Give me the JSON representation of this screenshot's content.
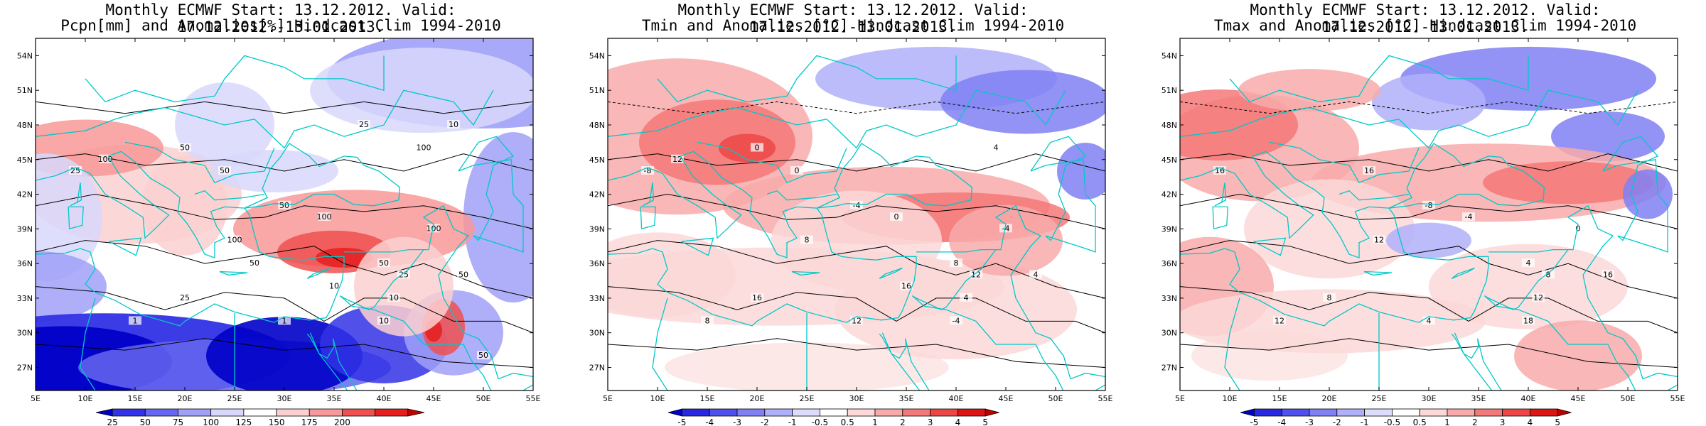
{
  "panels": [
    {
      "title_line1": "Monthly ECMWF Start: 13.12.2012. Valid: 17.12.2012.-13.01.2013.",
      "title_line2": "Pcpn[mm] and Anomalies[%] Hindcast Clim 1994-2010",
      "variable": "precipitation",
      "colorbar": {
        "labels": [
          "25",
          "50",
          "75",
          "100",
          "125",
          "150",
          "175",
          "200"
        ],
        "colors": [
          "#0000c8",
          "#3232e6",
          "#6666f0",
          "#a0a0f8",
          "#d8d8fc",
          "#ffffff",
          "#fcd0d0",
          "#f89898",
          "#f05050",
          "#e61e1e",
          "#c80000"
        ]
      },
      "contour_labels": [
        "50",
        "100",
        "100",
        "50",
        "25",
        "10",
        "100",
        "50",
        "25",
        "10",
        "50",
        "1",
        "1",
        "25",
        "10",
        "100",
        "100",
        "50",
        "25",
        "10",
        "50",
        "50"
      ]
    },
    {
      "title_line1": "Monthly ECMWF Start: 13.12.2012. Valid: 17.12.2012.-13.01.2013.",
      "title_line2": "Tmin and Anomalies [°C] Hindcast Clim 1994-2010",
      "variable": "tmin",
      "colorbar": {
        "labels": [
          "-5",
          "-4",
          "-3",
          "-2",
          "-1",
          "-0.5",
          "0.5",
          "1",
          "2",
          "3",
          "4",
          "5"
        ],
        "colors": [
          "#0000c8",
          "#2828e0",
          "#5050ec",
          "#8080f4",
          "#b0b0fa",
          "#dcdcfd",
          "#ffffff",
          "#fcd8d8",
          "#f8aaaa",
          "#f47878",
          "#ec4646",
          "#dc1414",
          "#c00000"
        ]
      },
      "contour_labels": [
        "-4",
        "0",
        "-4",
        "8",
        "12",
        "4",
        "8",
        "0",
        "-8",
        "-4",
        "4",
        "8",
        "12",
        "16",
        "16",
        "12",
        "4",
        "0"
      ]
    },
    {
      "title_line1": "Monthly ECMWF Start: 13.12.2012. Valid: 17.12.2012.-13.01.2013.",
      "title_line2": "Tmax and Anomalies [°C] Hindcast Clim 1994-2010",
      "variable": "tmax",
      "colorbar": {
        "labels": [
          "-5",
          "-4",
          "-3",
          "-2",
          "-1",
          "-0.5",
          "0.5",
          "1",
          "2",
          "3",
          "4",
          "5"
        ],
        "colors": [
          "#0000c8",
          "#2828e0",
          "#5050ec",
          "#8080f4",
          "#b0b0fa",
          "#dcdcfd",
          "#ffffff",
          "#fcd8d8",
          "#f8aaaa",
          "#f47878",
          "#ec4646",
          "#dc1414",
          "#c00000"
        ]
      },
      "contour_labels": [
        "-8",
        "-4",
        "0",
        "4",
        "8",
        "12",
        "12",
        "16",
        "16",
        "18",
        "16",
        "12",
        "4",
        "8"
      ]
    }
  ],
  "axes": {
    "lat_labels": [
      "54N",
      "51N",
      "48N",
      "45N",
      "42N",
      "39N",
      "36N",
      "33N",
      "30N",
      "27N"
    ],
    "lon_labels": [
      "5E",
      "10E",
      "15E",
      "20E",
      "25E",
      "30E",
      "35E",
      "40E",
      "45E",
      "50E",
      "55E"
    ]
  },
  "colors": {
    "coastline": "#00c8c8",
    "contour": "#000000"
  }
}
